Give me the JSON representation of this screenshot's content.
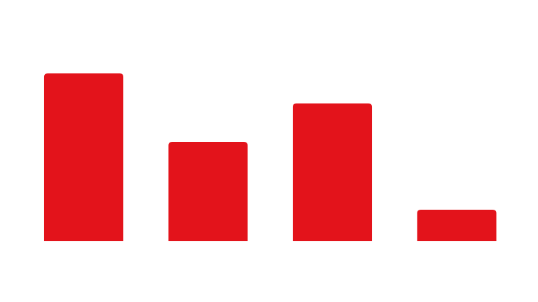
{
  "chart_data": {
    "type": "bar",
    "categories": [
      null,
      null,
      null,
      null
    ],
    "values": [
      240,
      142,
      197,
      45
    ],
    "color": "#e3131b",
    "ylim": [
      0,
      300
    ]
  }
}
